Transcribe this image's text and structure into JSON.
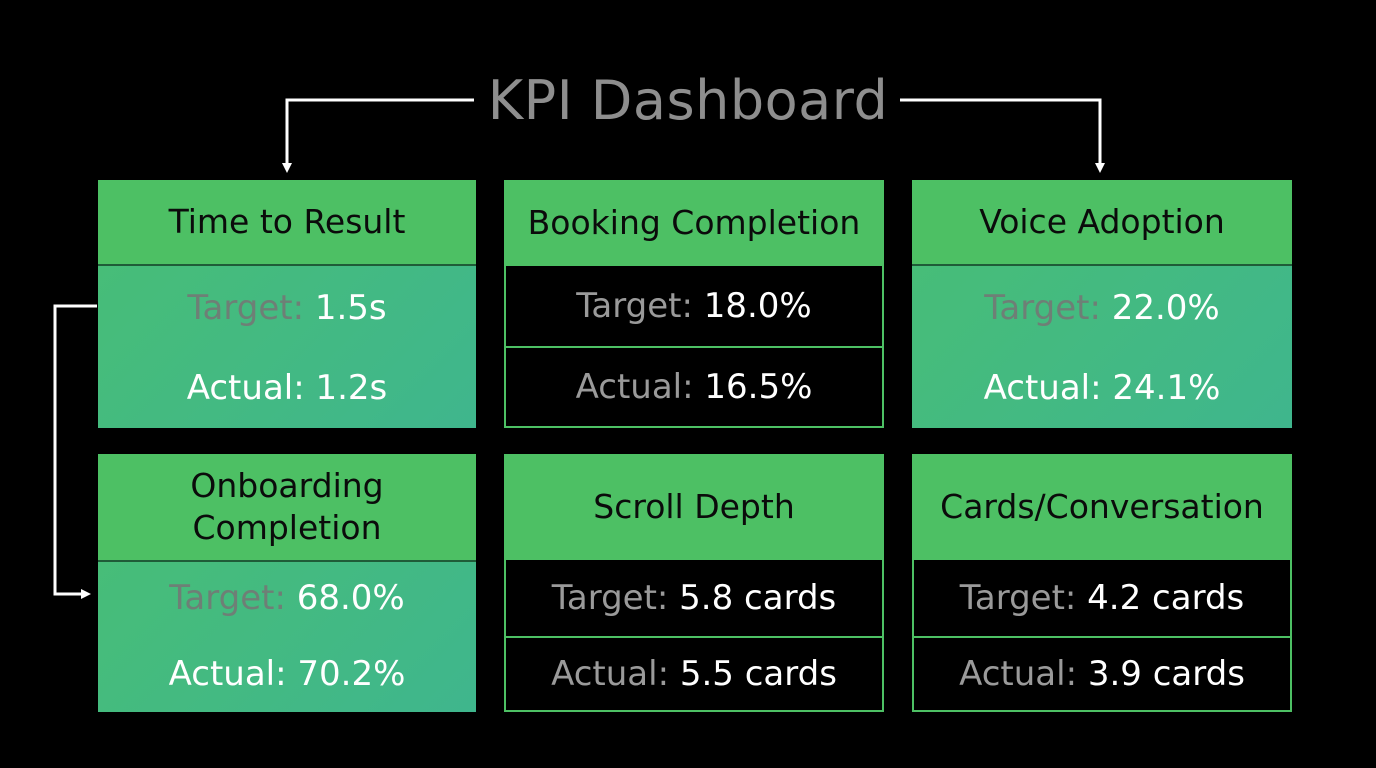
{
  "title": "KPI Dashboard",
  "colors": {
    "accent_green": "#4dc064",
    "teal_body": "#42b985",
    "background": "#000000",
    "title_gray": "#8e8e8e"
  },
  "cards": [
    {
      "name": "Time to Result",
      "target_label": "Target: ",
      "target_value": "1.5s",
      "actual_label": "Actual: ",
      "actual_value": "1.2s"
    },
    {
      "name": "Booking Completion",
      "target_label": "Target: ",
      "target_value": "18.0%",
      "actual_label": "Actual: ",
      "actual_value": "16.5%"
    },
    {
      "name": "Voice Adoption",
      "target_label": "Target: ",
      "target_value": "22.0%",
      "actual_label": "Actual: ",
      "actual_value": "24.1%"
    },
    {
      "name_line1": "Onboarding",
      "name_line2": "Completion",
      "target_label": "Target: ",
      "target_value": "68.0%",
      "actual_label": "Actual: ",
      "actual_value": "70.2%"
    },
    {
      "name": "Scroll Depth",
      "target_label": "Target: ",
      "target_value": "5.8 cards",
      "actual_label": "Actual: ",
      "actual_value": "5.5 cards"
    },
    {
      "name": "Cards/Conversation",
      "target_label": "Target: ",
      "target_value": "4.2 cards",
      "actual_label": "Actual: ",
      "actual_value": "3.9 cards"
    }
  ]
}
